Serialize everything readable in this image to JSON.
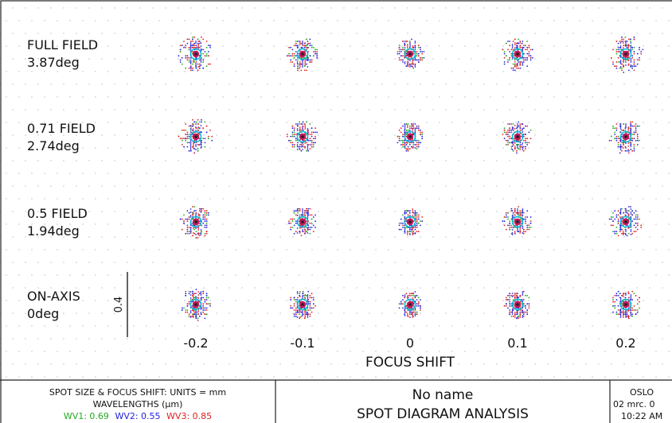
{
  "fields": [
    {
      "label": "FULL FIELD",
      "angle": "3.87deg"
    },
    {
      "label": "0.71 FIELD",
      "angle": "2.74deg"
    },
    {
      "label": "0.5 FIELD",
      "angle": "1.94deg"
    },
    {
      "label": "ON-AXIS",
      "angle": "0deg"
    }
  ],
  "focus_shifts": [
    "-0.2",
    "-0.1",
    "0",
    "0.1",
    "0.2"
  ],
  "axis_title": "FOCUS SHIFT",
  "scale_bar_label": "0.4",
  "footer": {
    "units": "SPOT SIZE & FOCUS SHIFT: UNITS = mm",
    "wavelengths_title": "WAVELENGTHS (μm)",
    "wv1": "WV1: 0.69",
    "wv2": "WV2: 0.55",
    "wv3": "WV3: 0.85",
    "lens_name": "No name",
    "analysis_title": "SPOT DIAGRAM ANALYSIS",
    "software": "OSLO",
    "date": "02 mrc. 0",
    "time": "10:22 AM"
  },
  "colors": {
    "wv1": "#22aa22",
    "wv2": "#2222dd",
    "wv3": "#dd2222",
    "accent_cyan": "#00bcd4",
    "accent_magenta": "#c2185b",
    "grid_dots": "#c9d3e0",
    "frame": "#222222"
  }
}
